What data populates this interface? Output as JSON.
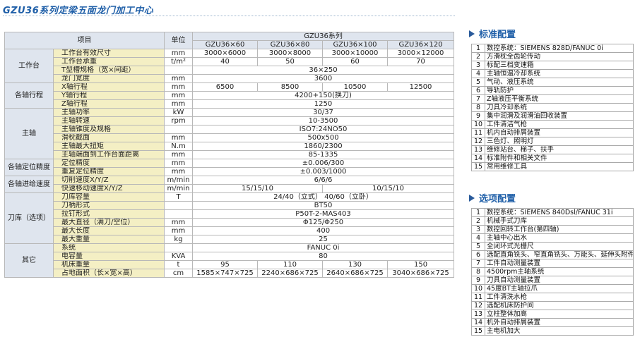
{
  "title": "GZU36系列定梁五面龙门加工中心",
  "spec_table": {
    "col_item": "项目",
    "col_unit": "单位",
    "series_label": "GZU36系列",
    "models": [
      "GZU36×60",
      "GZU36×80",
      "GZU36×100",
      "GZU36×120"
    ],
    "groups": [
      {
        "name": "工作台",
        "rows": [
          {
            "item": "工作台有效尺寸",
            "unit": "mm",
            "values": [
              "3000×6000",
              "3000×8000",
              "3000×10000",
              "3000×12000"
            ]
          },
          {
            "item": "工作台承重",
            "unit": "t/m²",
            "values": [
              "40",
              "50",
              "60",
              "70"
            ]
          },
          {
            "item": "T型槽规格（宽×间距）",
            "unit": "",
            "span": "36×250"
          },
          {
            "item": "龙门宽度",
            "unit": "mm",
            "span": "3600"
          }
        ]
      },
      {
        "name": "各轴行程",
        "rows": [
          {
            "item": "X轴行程",
            "unit": "mm",
            "values": [
              "6500",
              "8500",
              "10500",
              "12500"
            ]
          },
          {
            "item": "Y轴行程",
            "unit": "mm",
            "span": "4200+150(换刀)"
          },
          {
            "item": "Z轴行程",
            "unit": "mm",
            "span": "1250"
          }
        ]
      },
      {
        "name": "主轴",
        "rows": [
          {
            "item": "主轴功率",
            "unit": "kW",
            "span": "30/37"
          },
          {
            "item": "主轴转速",
            "unit": "rpm",
            "span": "10-3500"
          },
          {
            "item": "主轴锥度及规格",
            "unit": "",
            "span": "ISO7:24NO50"
          },
          {
            "item": "滑枕截面",
            "unit": "mm",
            "span": "500x500"
          },
          {
            "item": "主轴最大扭矩",
            "unit": "N.m",
            "span": "1860/2300"
          },
          {
            "item": "主轴端面到工作台面距离",
            "unit": "mm",
            "span": "85-1335"
          }
        ]
      },
      {
        "name": "各轴定位精度",
        "rows": [
          {
            "item": "定位精度",
            "unit": "mm",
            "span": "±0.006/300"
          },
          {
            "item": "重复定位精度",
            "unit": "mm",
            "span": "±0.003/1000"
          }
        ]
      },
      {
        "name": "各轴进给速度",
        "rows": [
          {
            "item": "切削速度X/Y/Z",
            "unit": "m/min",
            "span": "6/6/6"
          },
          {
            "item": "快速移动速度X/Y/Z",
            "unit": "m/min",
            "values2": [
              "15/15/10",
              "10/15/10"
            ]
          }
        ]
      },
      {
        "name": "刀库（选项）",
        "rows": [
          {
            "item": "刀库容量",
            "unit": "T",
            "span": "24/40（立式） 40/60（立卧）"
          },
          {
            "item": "刀柄形式",
            "unit": "",
            "span": "BT50"
          },
          {
            "item": "拉钉形式",
            "unit": "",
            "span": "P50T-2-MAS403"
          },
          {
            "item": "最大直径（满刀/空位）",
            "unit": "mm",
            "span": "Φ125/Φ250"
          },
          {
            "item": "最大长度",
            "unit": "mm",
            "span": "400"
          },
          {
            "item": "最大重量",
            "unit": "kg",
            "span": "25"
          }
        ]
      },
      {
        "name": "其它",
        "rows": [
          {
            "item": "系统",
            "unit": "",
            "span": "FANUC 0i"
          },
          {
            "item": "电容量",
            "unit": "KVA",
            "span": "80"
          },
          {
            "item": "机床重量",
            "unit": "t",
            "values": [
              "95",
              "110",
              "130",
              "150"
            ]
          },
          {
            "item": "占地面积（长×宽×高）",
            "unit": "cm",
            "values": [
              "1585×747×725",
              "2240×686×725",
              "2640×686×725",
              "3040×686×725"
            ]
          }
        ]
      }
    ]
  },
  "standard": {
    "title": "标准配置",
    "items": [
      "数控系统：SIEMENS 828D/FANUC 0i",
      "方滑枕全齿轮传动",
      "标配三档变速箱",
      "主轴恒温冷却系统",
      "气动、液压系统",
      "导轨防护",
      "Z轴液压平衡系统",
      "刀具冷却系统",
      "集中润滑及润滑油回收装置",
      "工件清洁气枪",
      "机内自动排屑装置",
      "三色灯、照明灯",
      "维修站台、梯子、扶手",
      "标准附件和相关文件",
      "常用维修工具"
    ]
  },
  "optional": {
    "title": "选项配置",
    "items": [
      "数控系统：SIEMENS 840Dsl/FANUC 31i",
      "机械手式刀库",
      "数控回转工作台(第四轴)",
      "主轴中心出水",
      "全闭环式光栅尺",
      "选配直角铣头、窄直角铣头、万能头、延伸头附件",
      "工件自动测量装置",
      "4500rpm主轴系统",
      "刀具自动测量装置",
      "45度BT主轴拉爪",
      "工件清洗水枪",
      "选配机床防护间",
      "立柱整体加高",
      "机外自动排屑装置",
      "主电机加大"
    ]
  }
}
